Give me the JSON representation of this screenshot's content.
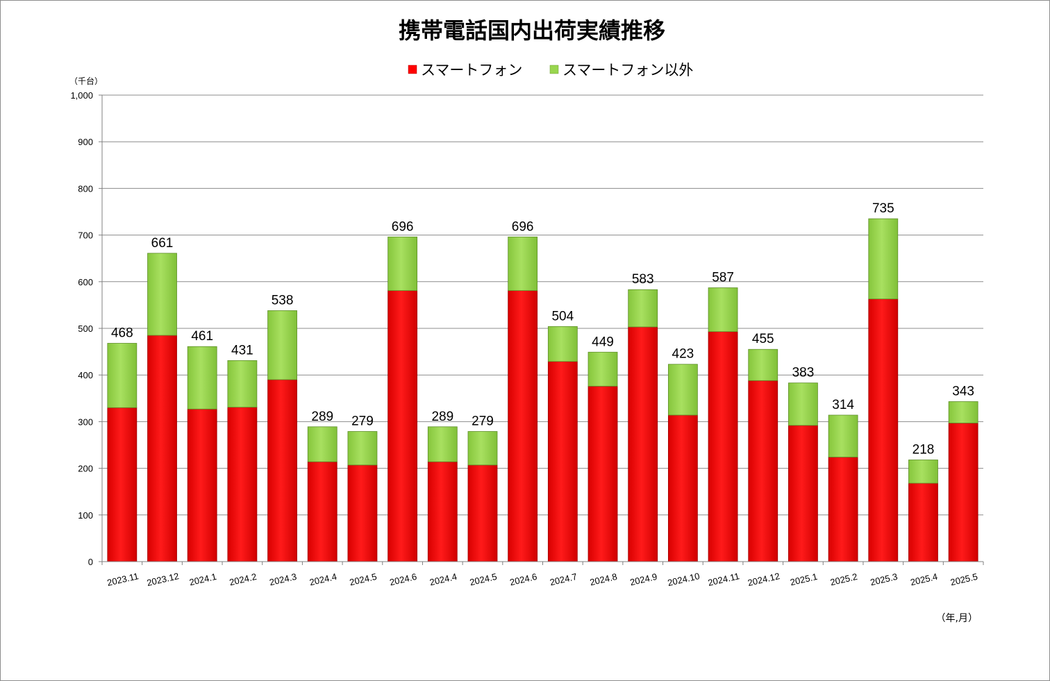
{
  "chart_data": {
    "type": "bar",
    "stacked": true,
    "title": "携帯電話国内出荷実績推移",
    "ylabel": "（千台）",
    "xlabel": "（年,月）",
    "ylim": [
      0,
      1000
    ],
    "yticks": [
      0,
      100,
      200,
      300,
      400,
      500,
      600,
      700,
      800,
      900,
      1000
    ],
    "ytick_labels": [
      "0",
      "100",
      "200",
      "300",
      "400",
      "500",
      "600",
      "700",
      "800",
      "900",
      "1,000"
    ],
    "grid": true,
    "legend_position": "top-center",
    "categories": [
      "2023.11",
      "2023.12",
      "2024.1",
      "2024.2",
      "2024.3",
      "2024.4",
      "2024.5",
      "2024.6",
      "2024.4",
      "2024.5",
      "2024.6",
      "2024.7",
      "2024.8",
      "2024.9",
      "2024.10",
      "2024.11",
      "2024.12",
      "2025.1",
      "2025.2",
      "2025.3",
      "2025.4",
      "2025.5"
    ],
    "series": [
      {
        "name": "スマートフォン",
        "color": "#ff0000",
        "values": [
          330,
          485,
          327,
          331,
          390,
          214,
          207,
          581,
          214,
          207,
          581,
          429,
          376,
          503,
          314,
          493,
          388,
          292,
          224,
          563,
          168,
          297
        ]
      },
      {
        "name": "スマートフォン以外",
        "color": "#99d64f",
        "values": [
          138,
          176,
          134,
          100,
          148,
          75,
          72,
          115,
          75,
          72,
          115,
          75,
          73,
          80,
          109,
          94,
          67,
          91,
          90,
          172,
          50,
          46
        ]
      }
    ],
    "totals": [
      468,
      661,
      461,
      431,
      538,
      289,
      279,
      696,
      289,
      279,
      696,
      504,
      449,
      583,
      423,
      587,
      455,
      383,
      314,
      735,
      218,
      343
    ]
  }
}
